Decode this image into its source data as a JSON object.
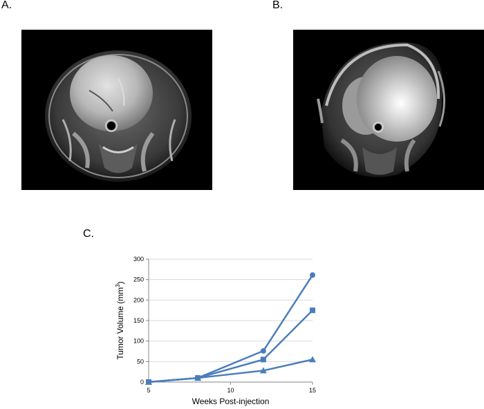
{
  "panels": {
    "a_label": "A.",
    "b_label": "B.",
    "c_label": "C."
  },
  "chart_data": {
    "type": "line",
    "xlabel": "Weeks Post-injection",
    "ylabel_main": "Tumor Volume (mm",
    "ylabel_sup": "3",
    "ylabel_close": ")",
    "xlim": [
      5,
      15
    ],
    "ylim": [
      0,
      300
    ],
    "xticks": [
      "5",
      "10",
      "15"
    ],
    "yticks": [
      "0",
      "50",
      "100",
      "150",
      "200",
      "250",
      "300"
    ],
    "grid": "horizontal",
    "line_color": "#4a7ebb",
    "series": [
      {
        "marker": "circle",
        "x": [
          5,
          8,
          12,
          15
        ],
        "y": [
          0,
          10,
          76,
          261
        ]
      },
      {
        "marker": "square",
        "x": [
          5,
          8,
          12,
          15
        ],
        "y": [
          0,
          10,
          55,
          175
        ]
      },
      {
        "marker": "triangle",
        "x": [
          5,
          8,
          12,
          15
        ],
        "y": [
          0,
          10,
          28,
          55
        ]
      }
    ]
  }
}
